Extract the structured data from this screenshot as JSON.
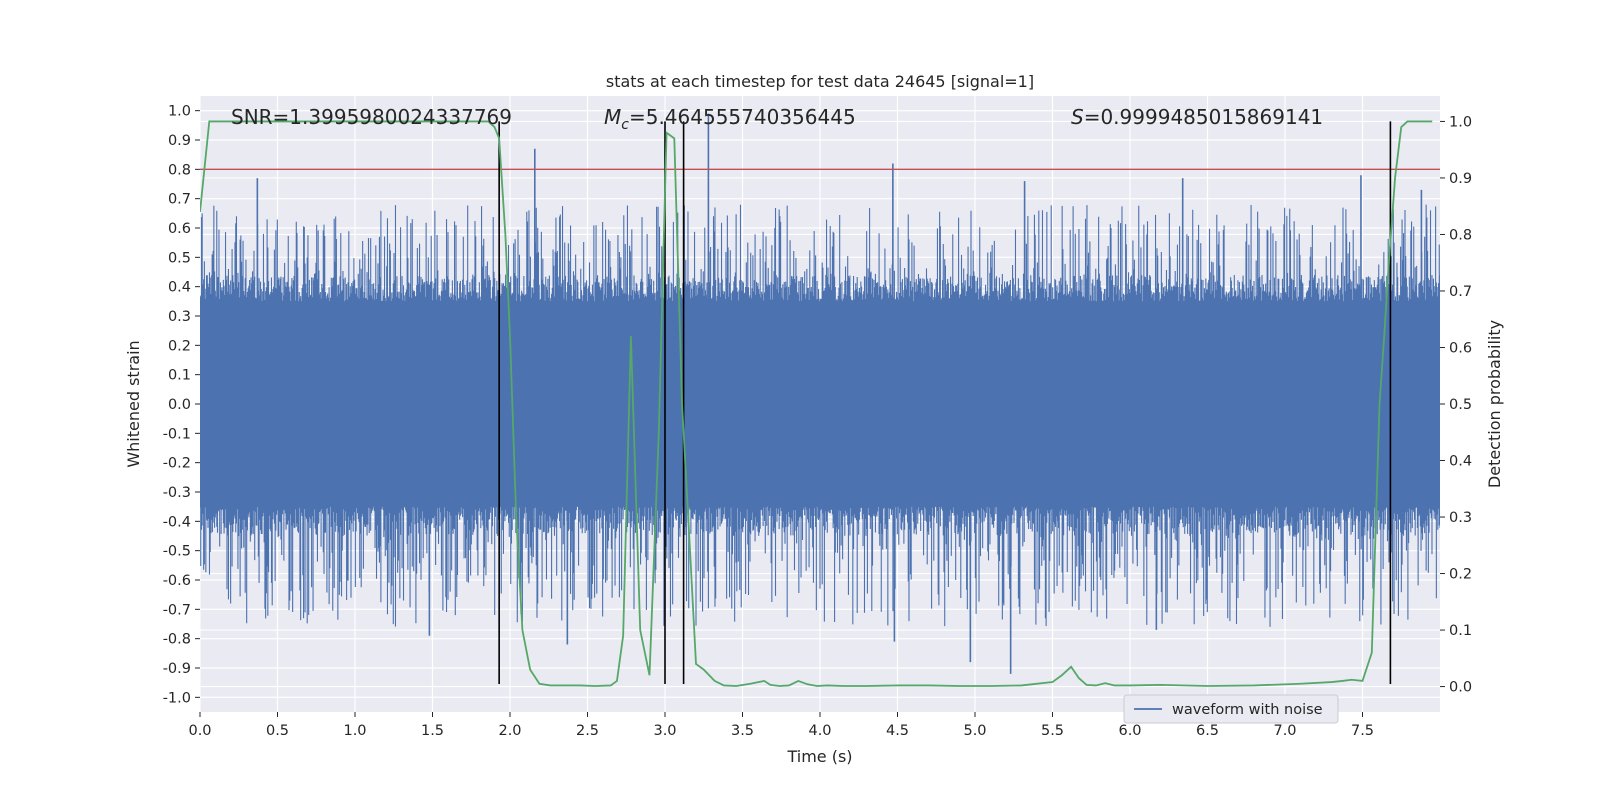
{
  "chart_data": {
    "type": "line",
    "title": "stats at each timestep for test data 24645 [signal=1]",
    "xlabel": "Time (s)",
    "ylabel": "Whitened strain",
    "y2label": "Detection probability",
    "xlim": [
      0,
      8
    ],
    "ylim": [
      -1.05,
      1.05
    ],
    "y2lim": [
      -0.045,
      1.045
    ],
    "x_ticks": [
      "0.0",
      "0.5",
      "1.0",
      "1.5",
      "2.0",
      "2.5",
      "3.0",
      "3.5",
      "4.0",
      "4.5",
      "5.0",
      "5.5",
      "6.0",
      "6.5",
      "7.0",
      "7.5"
    ],
    "y_ticks": [
      "1.0",
      "0.9",
      "0.8",
      "0.7",
      "0.6",
      "0.5",
      "0.4",
      "0.3",
      "0.2",
      "0.1",
      "0.0",
      "-0.1",
      "-0.2",
      "-0.3",
      "-0.4",
      "-0.5",
      "-0.6",
      "-0.7",
      "-0.8",
      "-0.9",
      "-1.0"
    ],
    "y2_ticks": [
      "1.0",
      "0.9",
      "0.8",
      "0.7",
      "0.6",
      "0.5",
      "0.4",
      "0.3",
      "0.2",
      "0.1",
      "0.0"
    ],
    "grid": true,
    "legend_position": "bottom-right",
    "annotations": {
      "snr": "SNR=1.3995980024337769",
      "mc_symbol": "M",
      "mc_sub": "c",
      "mc_value": "=5.464555740356445",
      "s_symbol": "S",
      "s_value": "=0.9999485015869141"
    },
    "series": [
      {
        "name": "waveform with noise",
        "color": "#4c72b0",
        "style": "noise",
        "band_core": 0.35,
        "typical_peak": [
          0.42,
          0.68
        ],
        "notable_peaks": [
          {
            "x": 0.37,
            "y": 0.77
          },
          {
            "x": 0.08,
            "y": 0.51
          },
          {
            "x": 2.16,
            "y": 0.87
          },
          {
            "x": 3.28,
            "y": 0.99
          },
          {
            "x": 4.47,
            "y": 0.82
          },
          {
            "x": 1.48,
            "y": -0.79
          },
          {
            "x": 2.37,
            "y": -0.82
          },
          {
            "x": 4.48,
            "y": -0.81
          },
          {
            "x": 4.97,
            "y": -0.88
          },
          {
            "x": 5.23,
            "y": -0.92
          },
          {
            "x": 6.17,
            "y": -0.77
          },
          {
            "x": 6.34,
            "y": 0.77
          },
          {
            "x": 7.49,
            "y": 0.78
          },
          {
            "x": 5.32,
            "y": 0.76
          },
          {
            "x": 7.88,
            "y": 0.73
          }
        ]
      },
      {
        "color": "#55a868",
        "axis": "right",
        "x": [
          0.0,
          0.06,
          0.12,
          0.5,
          1.0,
          1.5,
          1.86,
          1.9,
          1.93,
          1.97,
          2.0,
          2.04,
          2.08,
          2.13,
          2.19,
          2.26,
          2.35,
          2.45,
          2.55,
          2.65,
          2.69,
          2.73,
          2.78,
          2.84,
          2.9,
          2.96,
          3.01,
          3.06,
          3.11,
          3.15,
          3.2,
          3.25,
          3.32,
          3.38,
          3.46,
          3.55,
          3.64,
          3.68,
          3.74,
          3.8,
          3.86,
          3.92,
          3.98,
          4.05,
          4.15,
          4.3,
          4.5,
          4.7,
          4.9,
          5.1,
          5.3,
          5.5,
          5.56,
          5.62,
          5.67,
          5.72,
          5.78,
          5.84,
          5.9,
          6.0,
          6.2,
          6.5,
          6.8,
          7.1,
          7.3,
          7.37,
          7.43,
          7.5,
          7.56,
          7.61,
          7.64,
          7.67,
          7.71,
          7.75,
          7.79,
          7.83,
          7.88,
          7.95
        ],
        "values": [
          0.84,
          1.0,
          1.0,
          1.0,
          1.0,
          1.0,
          1.0,
          0.99,
          0.97,
          0.8,
          0.62,
          0.3,
          0.1,
          0.03,
          0.005,
          0.002,
          0.002,
          0.002,
          0.001,
          0.002,
          0.01,
          0.09,
          0.62,
          0.1,
          0.02,
          0.45,
          0.98,
          0.97,
          0.5,
          0.3,
          0.04,
          0.03,
          0.01,
          0.002,
          0.001,
          0.005,
          0.01,
          0.003,
          0.001,
          0.002,
          0.01,
          0.004,
          0.001,
          0.002,
          0.001,
          0.001,
          0.002,
          0.002,
          0.001,
          0.001,
          0.002,
          0.008,
          0.02,
          0.035,
          0.015,
          0.003,
          0.002,
          0.006,
          0.002,
          0.002,
          0.003,
          0.001,
          0.002,
          0.005,
          0.008,
          0.01,
          0.012,
          0.01,
          0.06,
          0.5,
          0.62,
          0.75,
          0.9,
          0.99,
          1.0,
          1.0,
          1.0,
          1.0
        ]
      }
    ],
    "threshold_line": {
      "y": 0.8,
      "color": "#c44e52"
    },
    "vertical_markers": [
      1.93,
      3.0,
      3.12,
      7.68
    ]
  }
}
